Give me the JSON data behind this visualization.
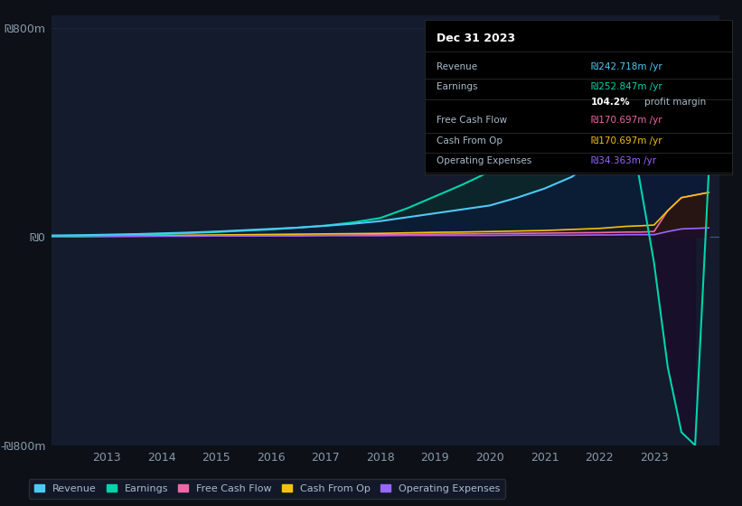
{
  "bg_color": "#0d1117",
  "plot_bg_color": "#141b2d",
  "grid_color": "#2a3a5c",
  "title_box_date": "Dec 31 2023",
  "ylim": [
    -800,
    850
  ],
  "ytick_labels": [
    "-₪800m",
    "₪0",
    "₪800m"
  ],
  "legend": [
    {
      "label": "Revenue",
      "color": "#4dc9f6"
    },
    {
      "label": "Earnings",
      "color": "#00d4aa"
    },
    {
      "label": "Free Cash Flow",
      "color": "#f067a6"
    },
    {
      "label": "Cash From Op",
      "color": "#f4c20d"
    },
    {
      "label": "Operating Expenses",
      "color": "#9966ff"
    }
  ]
}
